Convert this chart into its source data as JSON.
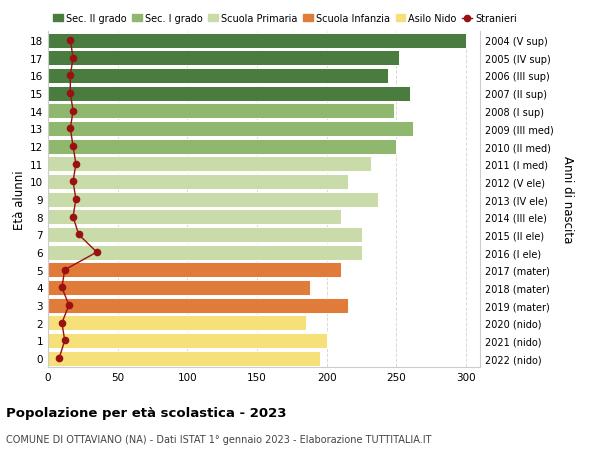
{
  "ages": [
    0,
    1,
    2,
    3,
    4,
    5,
    6,
    7,
    8,
    9,
    10,
    11,
    12,
    13,
    14,
    15,
    16,
    17,
    18
  ],
  "bar_values": [
    195,
    200,
    185,
    215,
    188,
    210,
    225,
    225,
    210,
    237,
    215,
    232,
    250,
    262,
    248,
    260,
    244,
    252,
    300
  ],
  "stranieri_values": [
    8,
    12,
    10,
    15,
    10,
    12,
    35,
    22,
    18,
    20,
    18,
    20,
    18,
    16,
    18,
    16,
    16,
    18,
    16
  ],
  "bar_colors": [
    "#f5e07a",
    "#f5e07a",
    "#f5e07a",
    "#e07b39",
    "#e07b39",
    "#e07b39",
    "#c8dba8",
    "#c8dba8",
    "#c8dba8",
    "#c8dba8",
    "#c8dba8",
    "#c8dba8",
    "#8fb86e",
    "#8fb86e",
    "#8fb86e",
    "#4a7c3f",
    "#4a7c3f",
    "#4a7c3f",
    "#4a7c3f"
  ],
  "right_labels": [
    "2022 (nido)",
    "2021 (nido)",
    "2020 (nido)",
    "2019 (mater)",
    "2018 (mater)",
    "2017 (mater)",
    "2016 (I ele)",
    "2015 (II ele)",
    "2014 (III ele)",
    "2013 (IV ele)",
    "2012 (V ele)",
    "2011 (I med)",
    "2010 (II med)",
    "2009 (III med)",
    "2008 (I sup)",
    "2007 (II sup)",
    "2006 (III sup)",
    "2005 (IV sup)",
    "2004 (V sup)"
  ],
  "legend_labels": [
    "Sec. II grado",
    "Sec. I grado",
    "Scuola Primaria",
    "Scuola Infanzia",
    "Asilo Nido",
    "Stranieri"
  ],
  "legend_colors": [
    "#4a7c3f",
    "#8fb86e",
    "#c8dba8",
    "#e07b39",
    "#f5e07a",
    "#a01010"
  ],
  "ylabel": "Età alunni",
  "right_ylabel": "Anni di nascita",
  "title": "Popolazione per età scolastica - 2023",
  "subtitle": "COMUNE DI OTTAVIANO (NA) - Dati ISTAT 1° gennaio 2023 - Elaborazione TUTTITALIA.IT",
  "xlim": [
    0,
    310
  ],
  "xticks": [
    0,
    50,
    100,
    150,
    200,
    250,
    300
  ],
  "bg_color": "#ffffff",
  "grid_color": "#d8d8d8",
  "stranieri_color": "#9b1010"
}
